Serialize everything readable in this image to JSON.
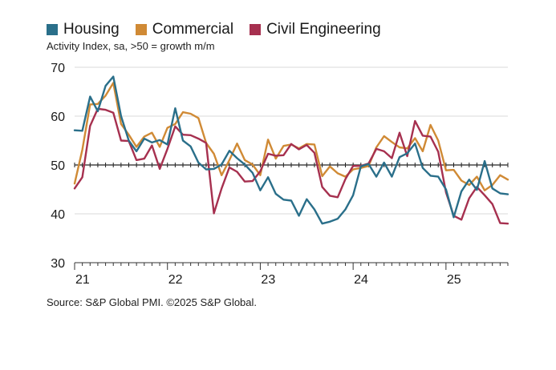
{
  "legend": [
    {
      "name": "Housing",
      "color": "#2a6f8a"
    },
    {
      "name": "Commercial",
      "color": "#d08a35"
    },
    {
      "name": "Civil Engineering",
      "color": "#a6304f"
    }
  ],
  "subtitle": "Activity Index, sa, >50 = growth m/m",
  "source": "Source: S&P Global PMI. ©2025 S&P Global.",
  "chart_data": {
    "type": "line",
    "title": "",
    "ylabel": "Activity Index, sa, >50 = growth m/m",
    "xlabel": "",
    "ylim": [
      30,
      70
    ],
    "xlim": [
      0,
      56
    ],
    "yticks": [
      30,
      40,
      50,
      60,
      70
    ],
    "xticks": [
      {
        "label": "21",
        "x": 0
      },
      {
        "label": "22",
        "x": 12
      },
      {
        "label": "23",
        "x": 24
      },
      {
        "label": "24",
        "x": 36
      },
      {
        "label": "25",
        "x": 48
      }
    ],
    "reference_line": 50,
    "x": [
      0,
      1,
      2,
      3,
      4,
      5,
      6,
      7,
      8,
      9,
      10,
      11,
      12,
      13,
      14,
      15,
      16,
      17,
      18,
      19,
      20,
      21,
      22,
      23,
      24,
      25,
      26,
      27,
      28,
      29,
      30,
      31,
      32,
      33,
      34,
      35,
      36,
      37,
      38,
      39,
      40,
      41,
      42,
      43,
      44,
      45,
      46,
      47,
      48,
      49,
      50,
      51,
      52,
      53,
      54,
      55,
      56
    ],
    "series": [
      {
        "name": "Housing",
        "color": "#2a6f8a",
        "values": [
          57.1,
          57.0,
          64.0,
          61.0,
          66.2,
          68.1,
          60.0,
          55.0,
          52.8,
          55.4,
          54.6,
          55.1,
          54.2,
          61.6,
          55.0,
          53.8,
          50.5,
          49.1,
          49.2,
          50.1,
          52.9,
          51.4,
          50.1,
          48.4,
          44.8,
          47.5,
          44.1,
          42.9,
          42.7,
          39.6,
          43.0,
          40.9,
          38.0,
          38.4,
          39.0,
          40.9,
          43.8,
          49.7,
          50.2,
          47.6,
          50.5,
          47.6,
          51.6,
          52.4,
          54.4,
          49.4,
          47.8,
          47.6,
          45.0,
          39.3,
          44.6,
          47.0,
          44.9,
          50.8,
          45.2,
          44.2,
          44.0
        ]
      },
      {
        "name": "Commercial",
        "color": "#d08a35",
        "values": [
          46.2,
          53.1,
          62.4,
          62.5,
          64.2,
          66.8,
          58.4,
          56.2,
          53.7,
          55.8,
          56.6,
          53.7,
          57.6,
          58.4,
          60.8,
          60.5,
          59.6,
          54.5,
          52.3,
          47.9,
          51.0,
          54.4,
          51.0,
          50.1,
          47.9,
          55.2,
          51.3,
          53.9,
          54.2,
          53.4,
          54.3,
          54.2,
          47.7,
          49.7,
          48.3,
          47.6,
          49.1,
          49.4,
          49.8,
          53.6,
          55.9,
          54.7,
          53.6,
          53.4,
          55.5,
          52.8,
          58.2,
          55.0,
          48.9,
          49.0,
          46.8,
          45.9,
          47.6,
          44.8,
          45.9,
          47.9,
          47.0
        ]
      },
      {
        "name": "Civil Engineering",
        "color": "#a6304f",
        "values": [
          45.2,
          47.5,
          58.0,
          61.5,
          61.3,
          60.7,
          55.0,
          54.9,
          51.0,
          51.3,
          54.0,
          49.2,
          53.3,
          57.9,
          56.2,
          56.1,
          55.4,
          54.5,
          40.1,
          45.2,
          49.5,
          48.6,
          46.6,
          46.7,
          48.7,
          52.3,
          51.9,
          52.0,
          54.3,
          53.2,
          54.1,
          52.5,
          45.5,
          43.7,
          43.4,
          47.1,
          49.8,
          49.8,
          50.3,
          53.3,
          52.8,
          51.4,
          56.6,
          51.8,
          59.0,
          56.0,
          55.8,
          52.7,
          44.4,
          39.6,
          38.8,
          43.2,
          45.5,
          43.8,
          42.0,
          38.1,
          38.0
        ]
      }
    ]
  }
}
